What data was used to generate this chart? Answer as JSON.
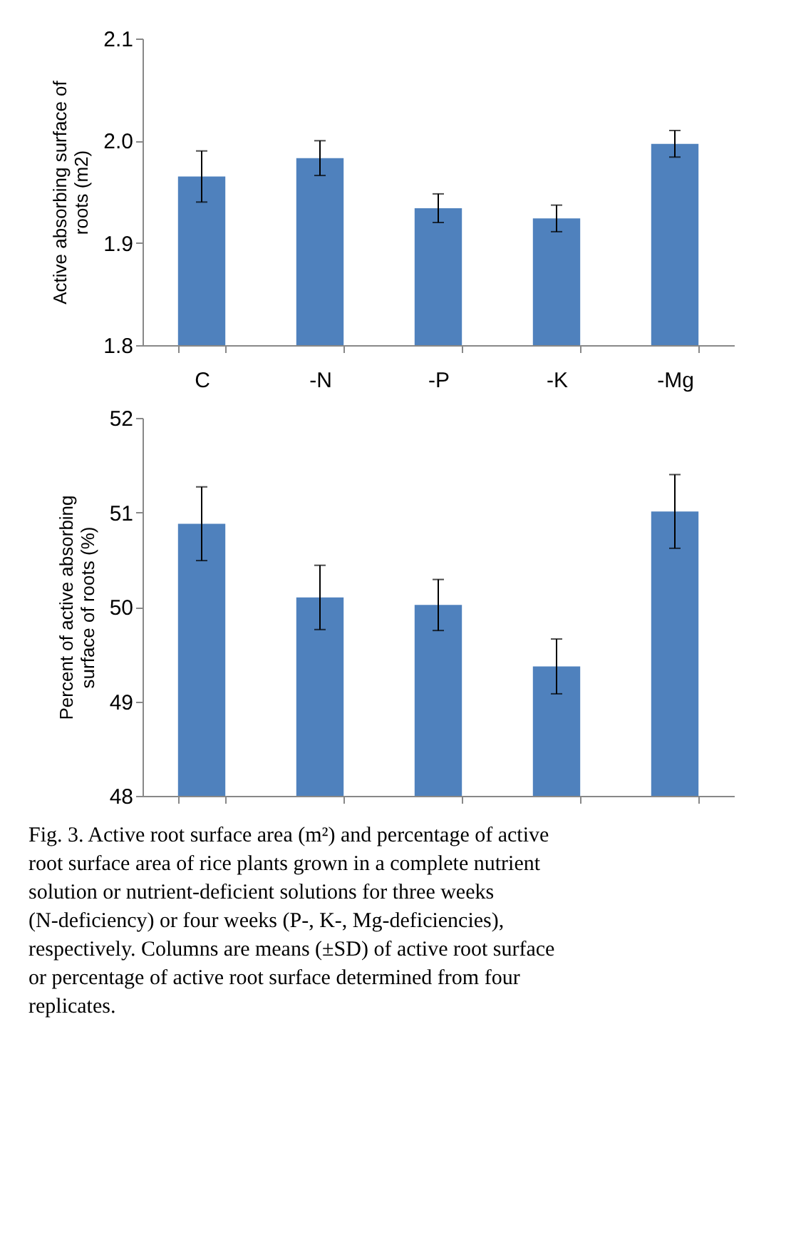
{
  "chart_data": [
    {
      "type": "bar",
      "categories": [
        "C",
        "-N",
        "-P",
        "-K",
        "-Mg"
      ],
      "ylabel": "Active absorbing surface of roots (m2)",
      "series": [
        {
          "color": "#4f81bd",
          "values": [
            1.965,
            1.983,
            1.934,
            1.924,
            1.997
          ],
          "errors": [
            0.025,
            0.017,
            0.014,
            0.013,
            0.013
          ]
        }
      ],
      "ylim": [
        1.8,
        2.1
      ],
      "yticks": [
        {
          "value": 1.8,
          "label": "1.8"
        },
        {
          "value": 1.9,
          "label": "1.9"
        },
        {
          "value": 2.0,
          "label": "2.0"
        },
        {
          "value": 2.1,
          "label": "2.1"
        }
      ],
      "grid": false
    },
    {
      "type": "bar",
      "categories": [
        null,
        null,
        null,
        null,
        null
      ],
      "ylabel": "Percent of  active absorbing surface of roots (%)",
      "series": [
        {
          "color": "#4f81bd",
          "values": [
            50.88,
            50.1,
            50.02,
            49.37,
            51.01
          ],
          "errors": [
            0.39,
            0.34,
            0.27,
            0.29,
            0.39
          ]
        }
      ],
      "ylim": [
        48,
        52
      ],
      "yticks": [
        48,
        49,
        50,
        51,
        52
      ],
      "grid": false,
      "tick_labels": "y",
      "annotations": [
        "Fig. 3. Active root surface area (m²) and percentage of active root surface area of rice plants grown in a complete nutrient solution or nutrient-deficient solutions for three weeks (N-deficiency) or four weeks (P-, K-, Mg-deficiencies), respectively. Columns are means (±SD) of active root surface or percentage of active root surface determined from four replicates."
      ]
    }
  ]
}
